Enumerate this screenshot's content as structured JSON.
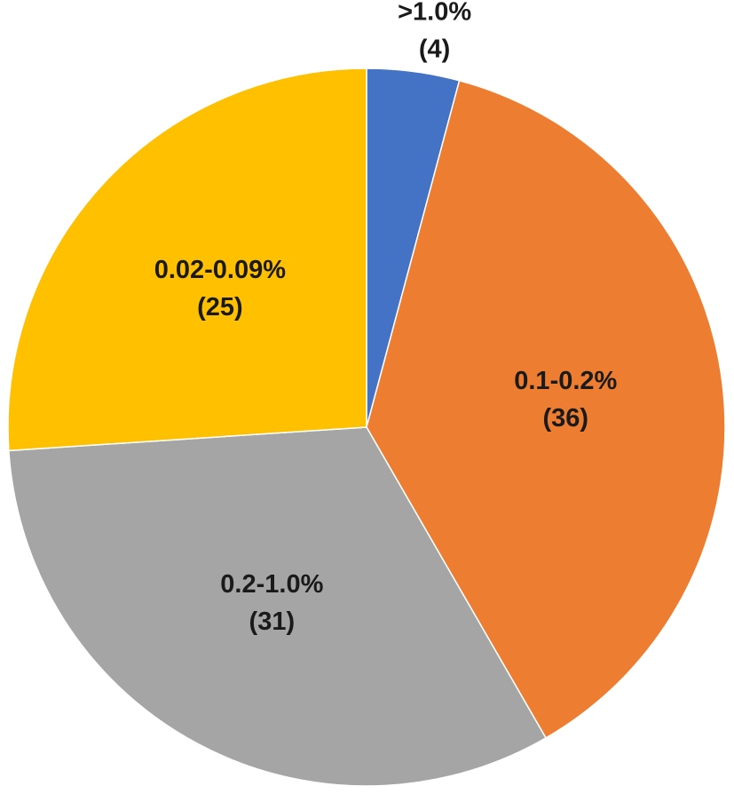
{
  "chart_data": {
    "type": "pie",
    "categories": [
      ">1.0%",
      "0.1-0.2%",
      "0.2-1.0%",
      "0.02-0.09%"
    ],
    "values": [
      4,
      36,
      31,
      25
    ],
    "value_labels": [
      "(4)",
      "(36)",
      "(31)",
      "(25)"
    ],
    "colors": [
      "#4472c4",
      "#ed7d31",
      "#a5a5a5",
      "#ffc000"
    ]
  }
}
